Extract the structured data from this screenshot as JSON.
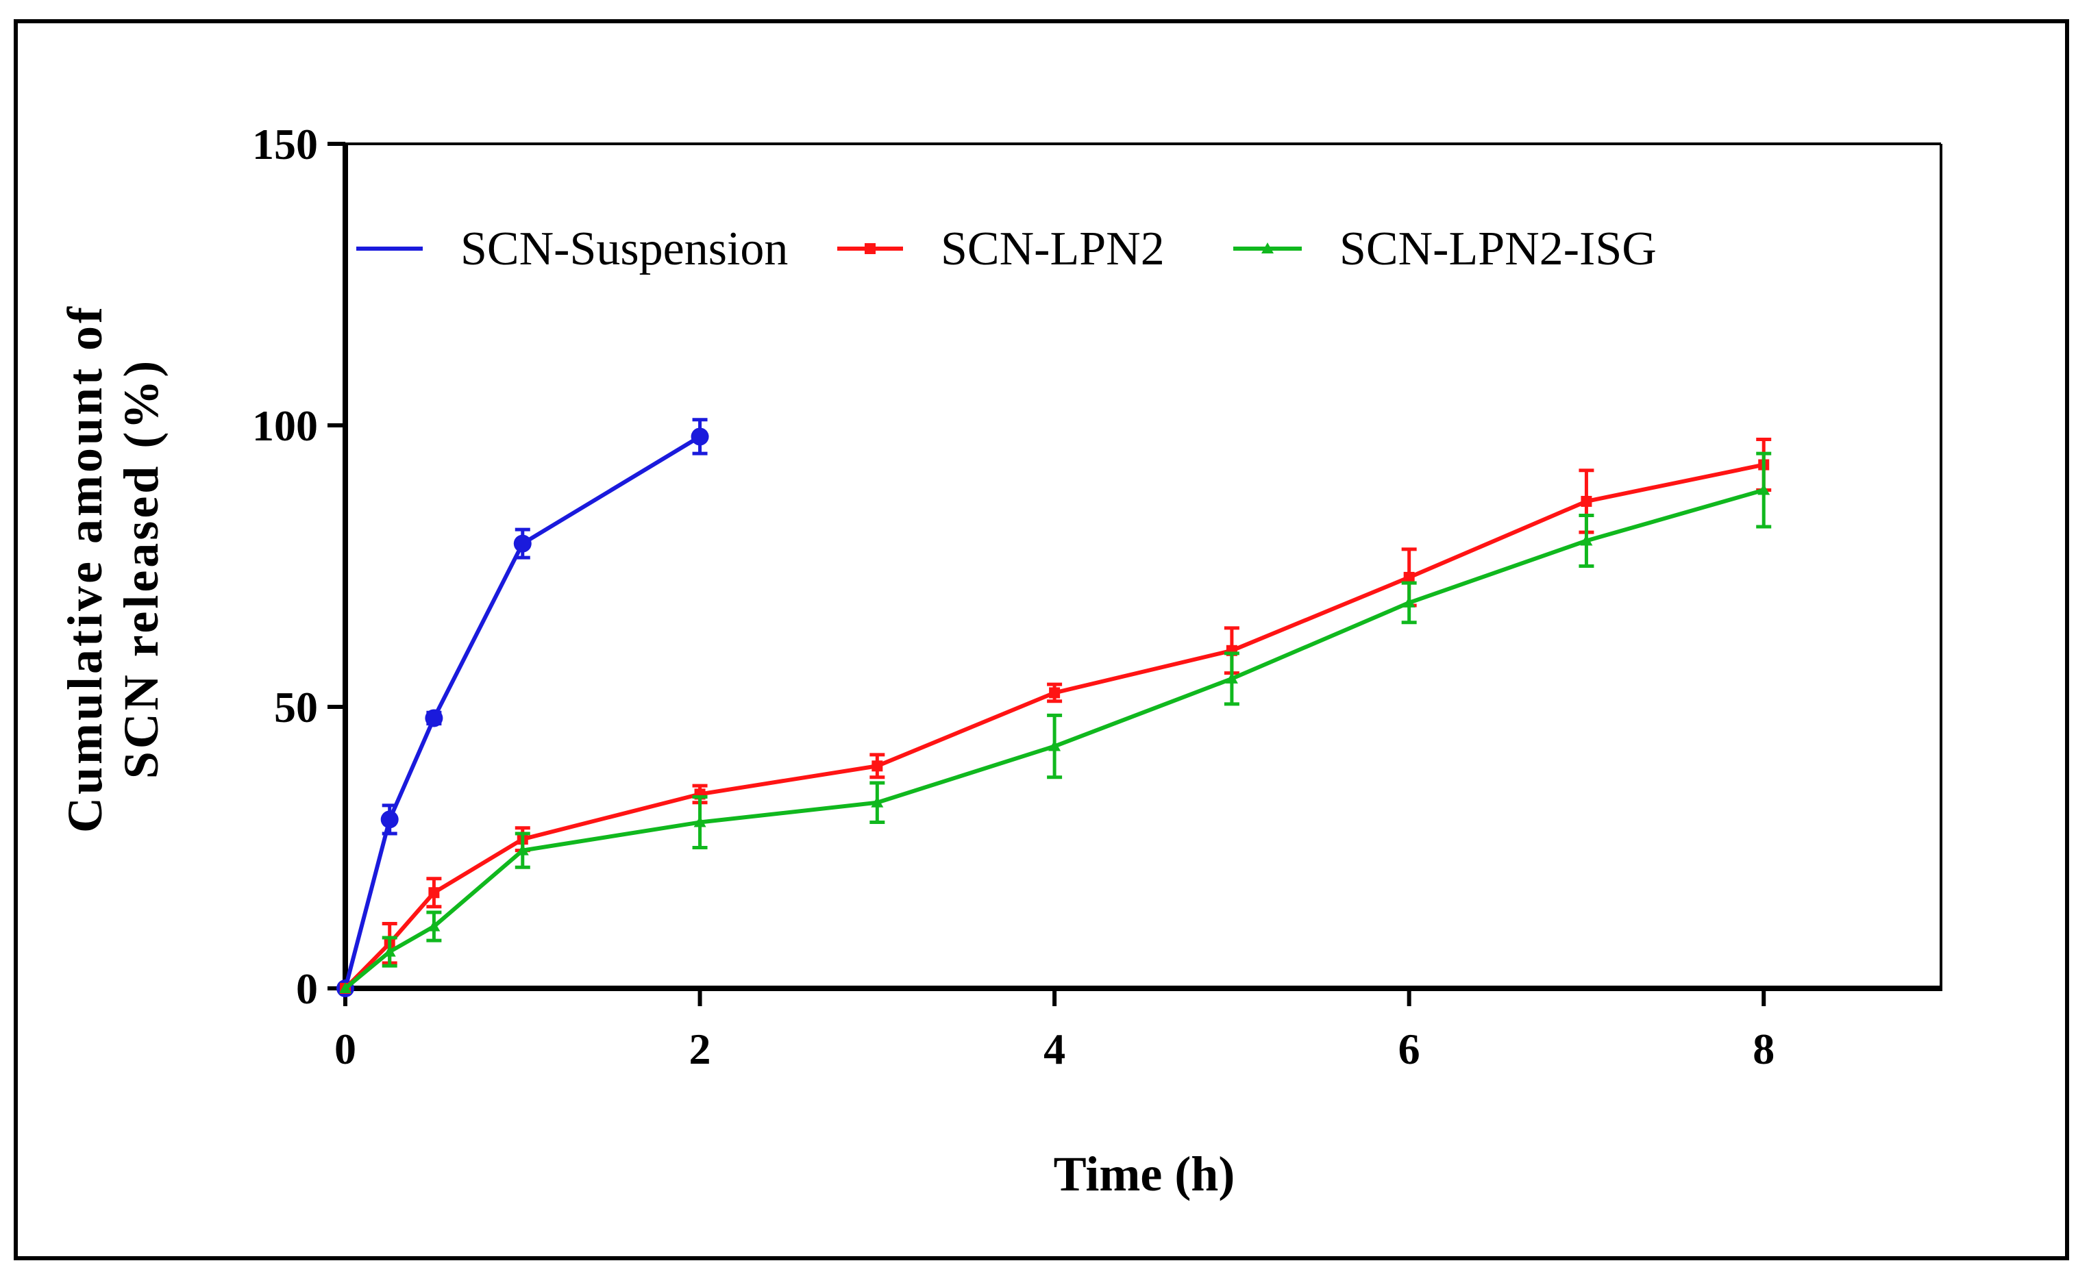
{
  "chart_data": {
    "type": "line",
    "title": "",
    "xlabel": "Time (h)",
    "ylabel_lines": [
      "Cumulative amount of",
      "SCN released (%)"
    ],
    "xlim": [
      0,
      9
    ],
    "ylim": [
      0,
      150
    ],
    "xticks": [
      0,
      2,
      4,
      6,
      8
    ],
    "yticks": [
      0,
      50,
      100,
      150
    ],
    "grid": false,
    "legend_position": "top",
    "series": [
      {
        "name": "SCN-Suspension",
        "color": "#1a1adc",
        "marker": "circle",
        "x": [
          0,
          0.25,
          0.5,
          1,
          2
        ],
        "y": [
          0,
          30,
          48,
          79,
          98
        ],
        "err": [
          0,
          2.5,
          1,
          2.5,
          3
        ]
      },
      {
        "name": "SCN-LPN2",
        "color": "#ff1414",
        "marker": "square",
        "x": [
          0,
          0.25,
          0.5,
          1,
          2,
          3,
          4,
          5,
          6,
          7,
          8
        ],
        "y": [
          0,
          8,
          17,
          26.5,
          34.5,
          39.5,
          52.5,
          60,
          73,
          86.5,
          93
        ],
        "err": [
          0,
          3.5,
          2.5,
          2,
          1.5,
          2,
          1.5,
          4,
          5,
          5.5,
          4.5
        ]
      },
      {
        "name": "SCN-LPN2-ISG",
        "color": "#10b81e",
        "marker": "triangle",
        "x": [
          0,
          0.25,
          0.5,
          1,
          2,
          3,
          4,
          5,
          6,
          7,
          8
        ],
        "y": [
          0,
          6.5,
          11,
          24.5,
          29.5,
          33,
          43,
          55,
          68.5,
          79.5,
          88.5
        ],
        "err": [
          0,
          2.5,
          2.5,
          3,
          4.5,
          3.5,
          5.5,
          4.5,
          3.5,
          4.5,
          6.5
        ]
      }
    ]
  }
}
